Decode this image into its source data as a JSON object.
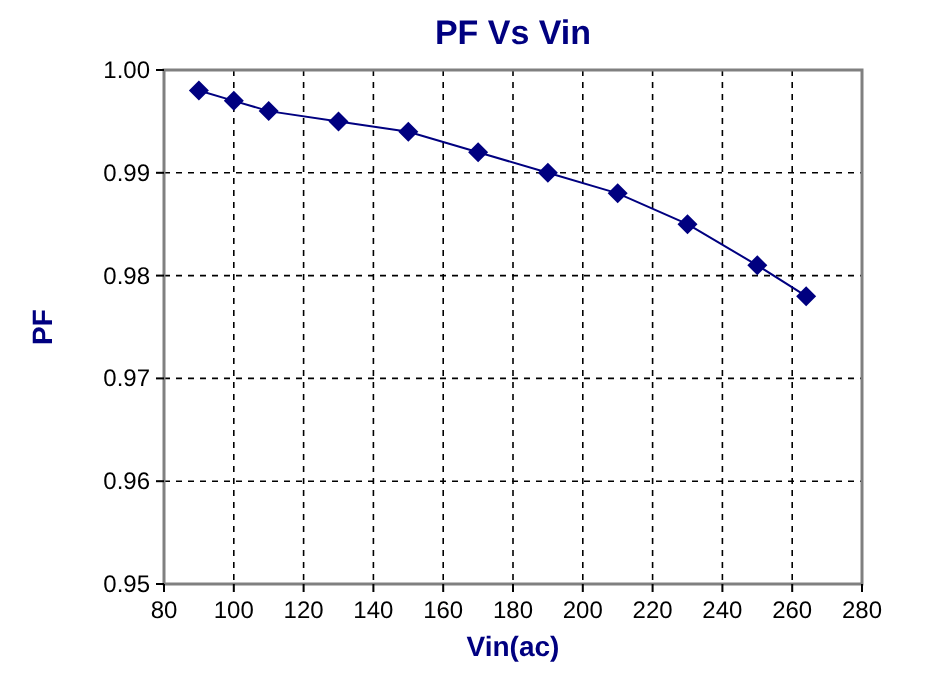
{
  "chart_data": {
    "type": "line",
    "title": "PF  Vs Vin",
    "xlabel": "Vin(ac)",
    "ylabel": "PF",
    "x": [
      90,
      100,
      110,
      130,
      150,
      170,
      190,
      210,
      230,
      250,
      264
    ],
    "series": [
      {
        "color": "#000080",
        "values": [
          0.998,
          0.997,
          0.996,
          0.995,
          0.994,
          0.992,
          0.99,
          0.988,
          0.985,
          0.981,
          0.978
        ]
      }
    ],
    "xlim": [
      80,
      280
    ],
    "xticks": [
      80,
      100,
      120,
      140,
      160,
      180,
      200,
      220,
      240,
      260,
      280
    ],
    "ylim": [
      0.95,
      1.0
    ],
    "yticks": [
      {
        "value": 0.95,
        "label": "0.95"
      },
      {
        "value": 0.96,
        "label": "0.96"
      },
      {
        "value": 0.97,
        "label": "0.97"
      },
      {
        "value": 0.98,
        "label": "0.98"
      },
      {
        "value": 0.99,
        "label": "0.99"
      },
      {
        "value": 1.0,
        "label": "1.00"
      }
    ],
    "grid": true,
    "marker": "diamond",
    "line_style": "solid"
  }
}
